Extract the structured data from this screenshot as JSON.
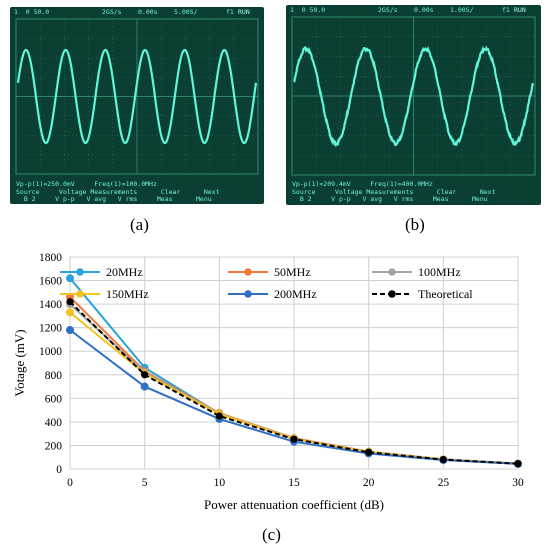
{
  "scope_a": {
    "top_left": "1  0 50.0",
    "top_mid": "2GS/s",
    "top_time": "0.00s",
    "top_div": "5.00S/",
    "top_right": "f1",
    "run": "RUN",
    "meas_line": "Vp-p(1)=250.0mV     Freq(1)=100.0MHz",
    "bottom_row1": "Source     Voltage Measurements      Clear      Next",
    "bottom_row2": "  B 2     V p-p   V avg   V rms     Meas      Menu",
    "wave_cycles": 6,
    "caption": "(a)"
  },
  "scope_b": {
    "top_left": "1  0 50.0",
    "top_mid": "2GS/s",
    "top_time": "0.00s",
    "top_div": "1.00S/",
    "top_right": "f1",
    "run": "RUN",
    "meas_line": "Vp-p(1)=209.4mV     Freq(1)=400.0MHz",
    "bottom_row1": "Source     Voltage Measurements      Clear      Next",
    "bottom_row2": "  B 2     V p-p   V avg   V rms     Meas      Menu",
    "wave_cycles": 4,
    "caption": "(b)"
  },
  "chart_caption": "(c)",
  "chart_data": {
    "type": "line",
    "x": [
      0,
      5,
      10,
      15,
      20,
      25,
      30
    ],
    "xlabel": "Power attenuation coefficient  (dB)",
    "ylabel": "Votage (mV)",
    "xlim": [
      0,
      30
    ],
    "ylim": [
      0,
      1800
    ],
    "xticks": [
      0,
      5,
      10,
      15,
      20,
      25,
      30
    ],
    "yticks": [
      0,
      200,
      400,
      600,
      800,
      1000,
      1200,
      1400,
      1600,
      1800
    ],
    "grid": true,
    "legend_placement": "top",
    "series": [
      {
        "name": "20MHz",
        "color": "#29a3dc",
        "dashed": false,
        "values": [
          1620,
          860,
          470,
          255,
          145,
          80,
          45
        ]
      },
      {
        "name": "50MHz",
        "color": "#f07a3a",
        "dashed": false,
        "values": [
          1460,
          830,
          475,
          262,
          148,
          82,
          46
        ]
      },
      {
        "name": "100MHz",
        "color": "#a5a5a5",
        "dashed": false,
        "values": [
          1400,
          820,
          470,
          258,
          146,
          82,
          46
        ]
      },
      {
        "name": "150MHz",
        "color": "#f7c11e",
        "dashed": false,
        "values": [
          1330,
          810,
          465,
          256,
          144,
          81,
          45
        ]
      },
      {
        "name": "200MHz",
        "color": "#2f6fc4",
        "dashed": false,
        "values": [
          1180,
          700,
          425,
          232,
          132,
          76,
          43
        ]
      },
      {
        "name": "Theoretical",
        "color": "#000000",
        "dashed": true,
        "values": [
          1420,
          800,
          450,
          253,
          142,
          80,
          45
        ]
      }
    ]
  }
}
